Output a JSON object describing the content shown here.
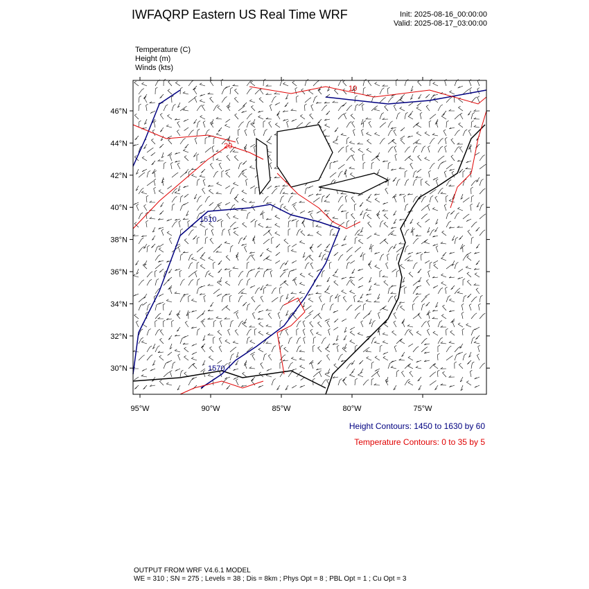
{
  "header": {
    "title": "IWFAQRP Eastern US Real Time WRF",
    "init": "Init: 2025-08-16_00:00:00",
    "valid": "Valid: 2025-08-17_03:00:00"
  },
  "fields": [
    "Temperature   (C)",
    "Height   (m)",
    "Winds   (kts)"
  ],
  "map": {
    "lat_ticks": [
      {
        "value": 46,
        "label": "46°N"
      },
      {
        "value": 44,
        "label": "44°N"
      },
      {
        "value": 42,
        "label": "42°N"
      },
      {
        "value": 40,
        "label": "40°N"
      },
      {
        "value": 38,
        "label": "38°N"
      },
      {
        "value": 36,
        "label": "36°N"
      },
      {
        "value": 34,
        "label": "34°N"
      },
      {
        "value": 32,
        "label": "32°N"
      },
      {
        "value": 30,
        "label": "30°N"
      }
    ],
    "lon_ticks": [
      {
        "value": -95,
        "label": "95°W"
      },
      {
        "value": -90,
        "label": "90°W"
      },
      {
        "value": -85,
        "label": "85°W"
      },
      {
        "value": -80,
        "label": "80°W"
      },
      {
        "value": -75,
        "label": "75°W"
      }
    ],
    "contour_labels": [
      "10",
      "20",
      "1510",
      "1570"
    ]
  },
  "legend": {
    "height": "Height Contours: 1450 to 1630 by 60",
    "temperature": "Temperature Contours: 0 to 35 by 5"
  },
  "footer": {
    "model": "OUTPUT FROM WRF V4.6.1 MODEL",
    "details": "WE = 310 ; SN = 275 ; Levels = 38 ; Dis = 8km ; Phys Opt = 8 ; PBL Opt = 1 ; Cu Opt = 3"
  }
}
